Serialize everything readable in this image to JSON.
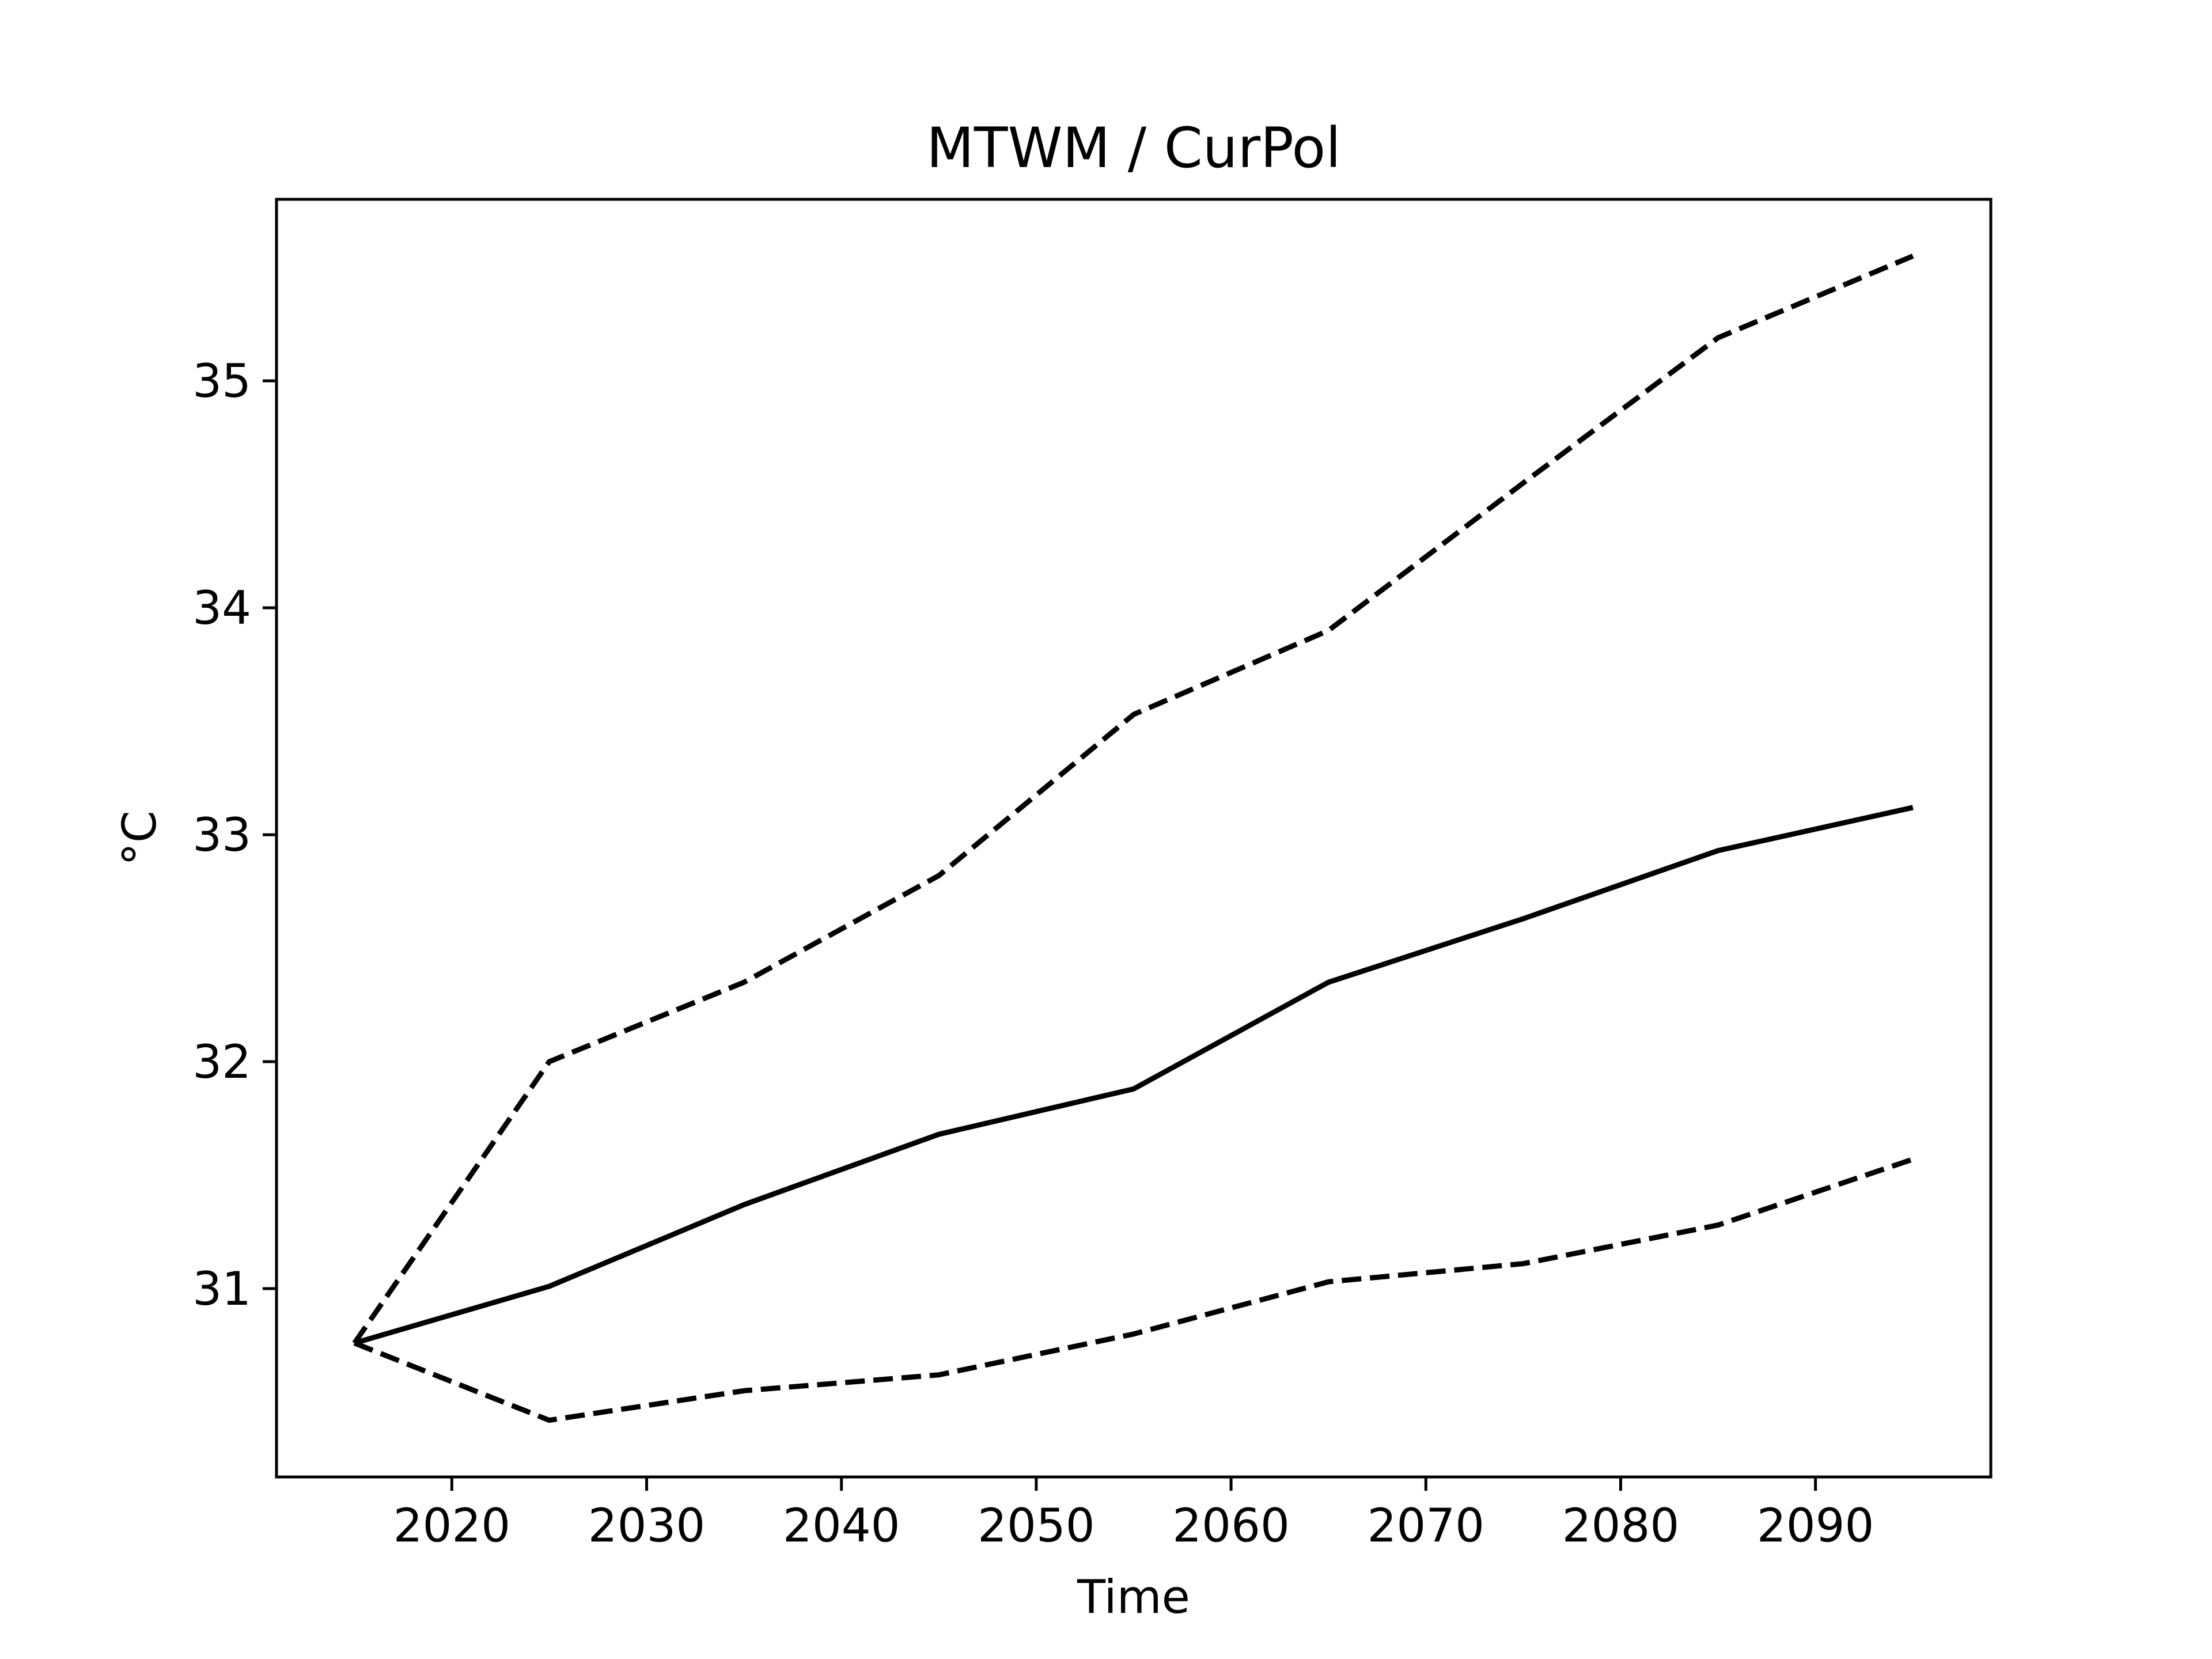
{
  "chart_data": {
    "type": "line",
    "title": "MTWM / CurPol",
    "xlabel": "Time",
    "ylabel": "°C",
    "xlim": [
      2011,
      2099
    ],
    "ylim": [
      30.17,
      35.8
    ],
    "xticks": [
      2020,
      2030,
      2040,
      2050,
      2060,
      2070,
      2080,
      2090
    ],
    "yticks": [
      31,
      32,
      33,
      34,
      35
    ],
    "grid": false,
    "x": [
      2015,
      2025,
      2035,
      2045,
      2055,
      2065,
      2075,
      2085,
      2095
    ],
    "series": [
      {
        "style": "solid",
        "color": "#000000",
        "values": [
          30.76,
          31.01,
          31.37,
          31.68,
          31.88,
          32.35,
          32.63,
          32.93,
          33.12
        ]
      },
      {
        "style": "dashed",
        "color": "#000000",
        "values": [
          30.76,
          32.0,
          32.35,
          32.82,
          33.53,
          33.9,
          34.55,
          35.19,
          35.55
        ]
      },
      {
        "style": "dashed",
        "color": "#000000",
        "values": [
          30.76,
          30.42,
          30.55,
          30.62,
          30.8,
          31.03,
          31.11,
          31.28,
          31.57
        ]
      }
    ]
  }
}
